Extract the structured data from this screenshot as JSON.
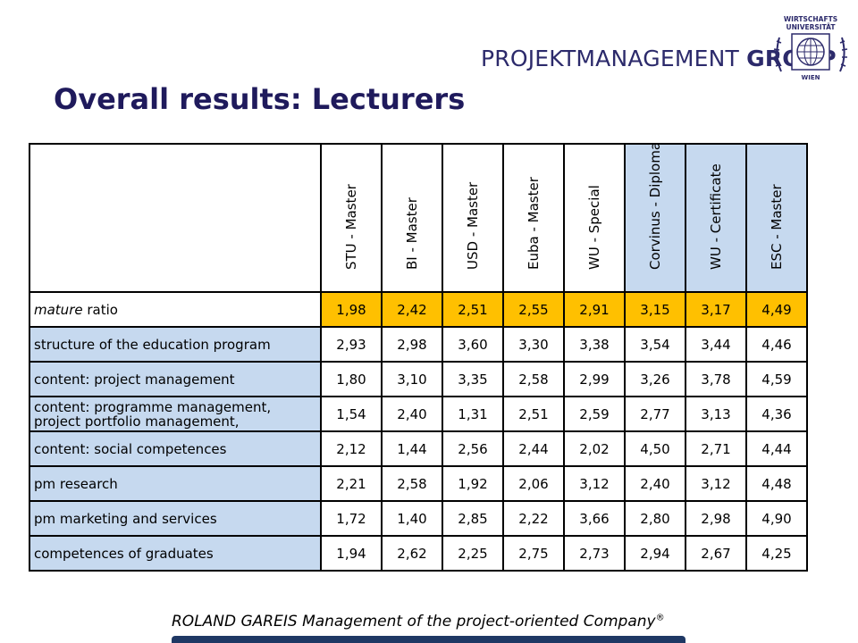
{
  "header": {
    "logo_text_regular": "PROJEKTMANAGEMENT",
    "logo_text_bold": "GROUP",
    "seal_top": "WIRTSCHAFTS",
    "seal_mid": "UNIVERSITÄT",
    "seal_bottom": "WIEN"
  },
  "title": "Overall results: Lecturers",
  "table": {
    "columns": [
      {
        "label": "STU - Master",
        "highlight": false
      },
      {
        "label": "BI - Master",
        "highlight": false
      },
      {
        "label": "USD - Master",
        "highlight": false
      },
      {
        "label": "Euba - Master",
        "highlight": false
      },
      {
        "label": "WU - Special",
        "highlight": false
      },
      {
        "label": "Corvinus - Diploma",
        "highlight": true
      },
      {
        "label": "WU - Certificate",
        "highlight": true
      },
      {
        "label": "ESC - Master",
        "highlight": true
      }
    ],
    "mature_row": {
      "label_italic": "mature",
      "label_rest": " ratio",
      "values": [
        "1,98",
        "2,42",
        "2,51",
        "2,55",
        "2,91",
        "3,15",
        "3,17",
        "4,49"
      ]
    },
    "rows": [
      {
        "label": "structure of the education program",
        "values": [
          "2,93",
          "2,98",
          "3,60",
          "3,30",
          "3,38",
          "3,54",
          "3,44",
          "4,46"
        ]
      },
      {
        "label": "content: project management",
        "values": [
          "1,80",
          "3,10",
          "3,35",
          "2,58",
          "2,99",
          "3,26",
          "3,78",
          "4,59"
        ]
      },
      {
        "label": "content: programme management,",
        "label2": "project portfolio management,",
        "values": [
          "1,54",
          "2,40",
          "1,31",
          "2,51",
          "2,59",
          "2,77",
          "3,13",
          "4,36"
        ]
      },
      {
        "label": "content: social competences",
        "values": [
          "2,12",
          "1,44",
          "2,56",
          "2,44",
          "2,02",
          "4,50",
          "2,71",
          "4,44"
        ]
      },
      {
        "label": "pm research",
        "values": [
          "2,21",
          "2,58",
          "1,92",
          "2,06",
          "3,12",
          "2,40",
          "3,12",
          "4,48"
        ]
      },
      {
        "label": "pm marketing and services",
        "values": [
          "1,72",
          "1,40",
          "2,85",
          "2,22",
          "3,66",
          "2,80",
          "2,98",
          "4,90"
        ]
      },
      {
        "label": "competences of graduates",
        "values": [
          "1,94",
          "2,62",
          "2,25",
          "2,75",
          "2,73",
          "2,94",
          "2,67",
          "4,25"
        ]
      }
    ]
  },
  "footer": {
    "text": "ROLAND GAREIS Management of the project-oriented Company",
    "mark": "®"
  },
  "colors": {
    "highlight_blue": "#c6d9ef",
    "mature_yellow": "#ffc000",
    "title": "#1f1a5c",
    "footer_bar": "#1f3864"
  }
}
